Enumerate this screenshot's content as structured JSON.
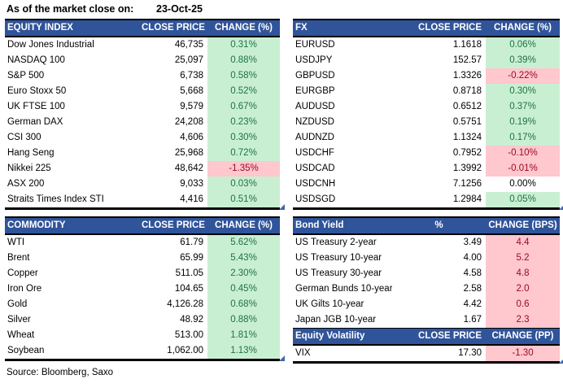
{
  "title": {
    "label": "As of the market close on:",
    "date": "23-Oct-25"
  },
  "source": "Source: Bloomberg, Saxo",
  "colors": {
    "header_bg": "#30549A",
    "positive_bg": "#C9EFD2",
    "positive_text": "#1F7245",
    "negative_bg": "#FFC7CE",
    "negative_text": "#9C0A20",
    "corner_marker": "#4667A8"
  },
  "tables": {
    "equity": {
      "title": "EQUITY INDEX",
      "price_header": "CLOSE PRICE",
      "change_header": "CHANGE (%)",
      "rows": [
        {
          "name": "Dow Jones Industrial",
          "price": "46,735",
          "change": "0.31%",
          "tone": "positive"
        },
        {
          "name": "NASDAQ 100",
          "price": "25,097",
          "change": "0.88%",
          "tone": "positive"
        },
        {
          "name": "S&P 500",
          "price": "6,738",
          "change": "0.58%",
          "tone": "positive"
        },
        {
          "name": "Euro Stoxx 50",
          "price": "5,668",
          "change": "0.52%",
          "tone": "positive"
        },
        {
          "name": "UK FTSE 100",
          "price": "9,579",
          "change": "0.67%",
          "tone": "positive"
        },
        {
          "name": "German DAX",
          "price": "24,208",
          "change": "0.23%",
          "tone": "positive"
        },
        {
          "name": "CSI 300",
          "price": "4,606",
          "change": "0.30%",
          "tone": "positive"
        },
        {
          "name": "Hang Seng",
          "price": "25,968",
          "change": "0.72%",
          "tone": "positive"
        },
        {
          "name": "Nikkei 225",
          "price": "48,642",
          "change": "-1.35%",
          "tone": "negative"
        },
        {
          "name": "ASX 200",
          "price": "9,033",
          "change": "0.03%",
          "tone": "positive"
        },
        {
          "name": "Straits Times Index STI",
          "price": "4,416",
          "change": "0.51%",
          "tone": "positive"
        }
      ]
    },
    "fx": {
      "title": "FX",
      "price_header": "CLOSE PRICE",
      "change_header": "CHANGE (%)",
      "rows": [
        {
          "name": "EURUSD",
          "price": "1.1618",
          "change": "0.06%",
          "tone": "positive"
        },
        {
          "name": "USDJPY",
          "price": "152.57",
          "change": "0.39%",
          "tone": "positive"
        },
        {
          "name": "GBPUSD",
          "price": "1.3326",
          "change": "-0.22%",
          "tone": "negative"
        },
        {
          "name": "EURGBP",
          "price": "0.8718",
          "change": "0.30%",
          "tone": "positive"
        },
        {
          "name": "AUDUSD",
          "price": "0.6512",
          "change": "0.37%",
          "tone": "positive"
        },
        {
          "name": "NZDUSD",
          "price": "0.5751",
          "change": "0.19%",
          "tone": "positive"
        },
        {
          "name": "AUDNZD",
          "price": "1.1324",
          "change": "0.17%",
          "tone": "positive"
        },
        {
          "name": "USDCHF",
          "price": "0.7952",
          "change": "-0.10%",
          "tone": "negative"
        },
        {
          "name": "USDCAD",
          "price": "1.3992",
          "change": "-0.01%",
          "tone": "negative"
        },
        {
          "name": "USDCNH",
          "price": "7.1256",
          "change": "0.00%",
          "tone": "neutral"
        },
        {
          "name": "USDSGD",
          "price": "1.2984",
          "change": "0.05%",
          "tone": "positive"
        }
      ]
    },
    "commodity": {
      "title": "COMMODITY",
      "price_header": "CLOSE PRICE",
      "change_header": "CHANGE (%)",
      "rows": [
        {
          "name": "WTI",
          "price": "61.79",
          "change": "5.62%",
          "tone": "positive"
        },
        {
          "name": "Brent",
          "price": "65.99",
          "change": "5.43%",
          "tone": "positive"
        },
        {
          "name": "Copper",
          "price": "511.05",
          "change": "2.30%",
          "tone": "positive"
        },
        {
          "name": "Iron Ore",
          "price": "104.65",
          "change": "0.45%",
          "tone": "positive"
        },
        {
          "name": "Gold",
          "price": "4,126.28",
          "change": "0.68%",
          "tone": "positive"
        },
        {
          "name": "Silver",
          "price": "48.92",
          "change": "0.88%",
          "tone": "positive"
        },
        {
          "name": "Wheat",
          "price": "513.00",
          "change": "1.81%",
          "tone": "positive"
        },
        {
          "name": "Soybean",
          "price": "1,062.00",
          "change": "1.13%",
          "tone": "positive"
        }
      ]
    },
    "bond": {
      "title": "Bond Yield",
      "price_header": "%",
      "change_header": "CHANGE (BPS)",
      "rows": [
        {
          "name": "US Treasury 2-year",
          "price": "3.49",
          "change": "4.4",
          "tone": "negative"
        },
        {
          "name": "US Treasury 10-year",
          "price": "4.00",
          "change": "5.2",
          "tone": "negative"
        },
        {
          "name": "US Treasury 30-year",
          "price": "4.58",
          "change": "4.8",
          "tone": "negative"
        },
        {
          "name": "German Bunds 10-year",
          "price": "2.58",
          "change": "2.0",
          "tone": "negative"
        },
        {
          "name": "UK Gilts 10-year",
          "price": "4.42",
          "change": "0.6",
          "tone": "negative"
        },
        {
          "name": "Japan JGB 10-year",
          "price": "1.67",
          "change": "2.3",
          "tone": "negative"
        }
      ]
    },
    "volatility": {
      "title": "Equity Volatility",
      "price_header": "CLOSE PRICE",
      "change_header": "CHANGE (PP)",
      "rows": [
        {
          "name": "VIX",
          "price": "17.30",
          "change": "-1.30",
          "tone": "negative"
        }
      ]
    }
  }
}
